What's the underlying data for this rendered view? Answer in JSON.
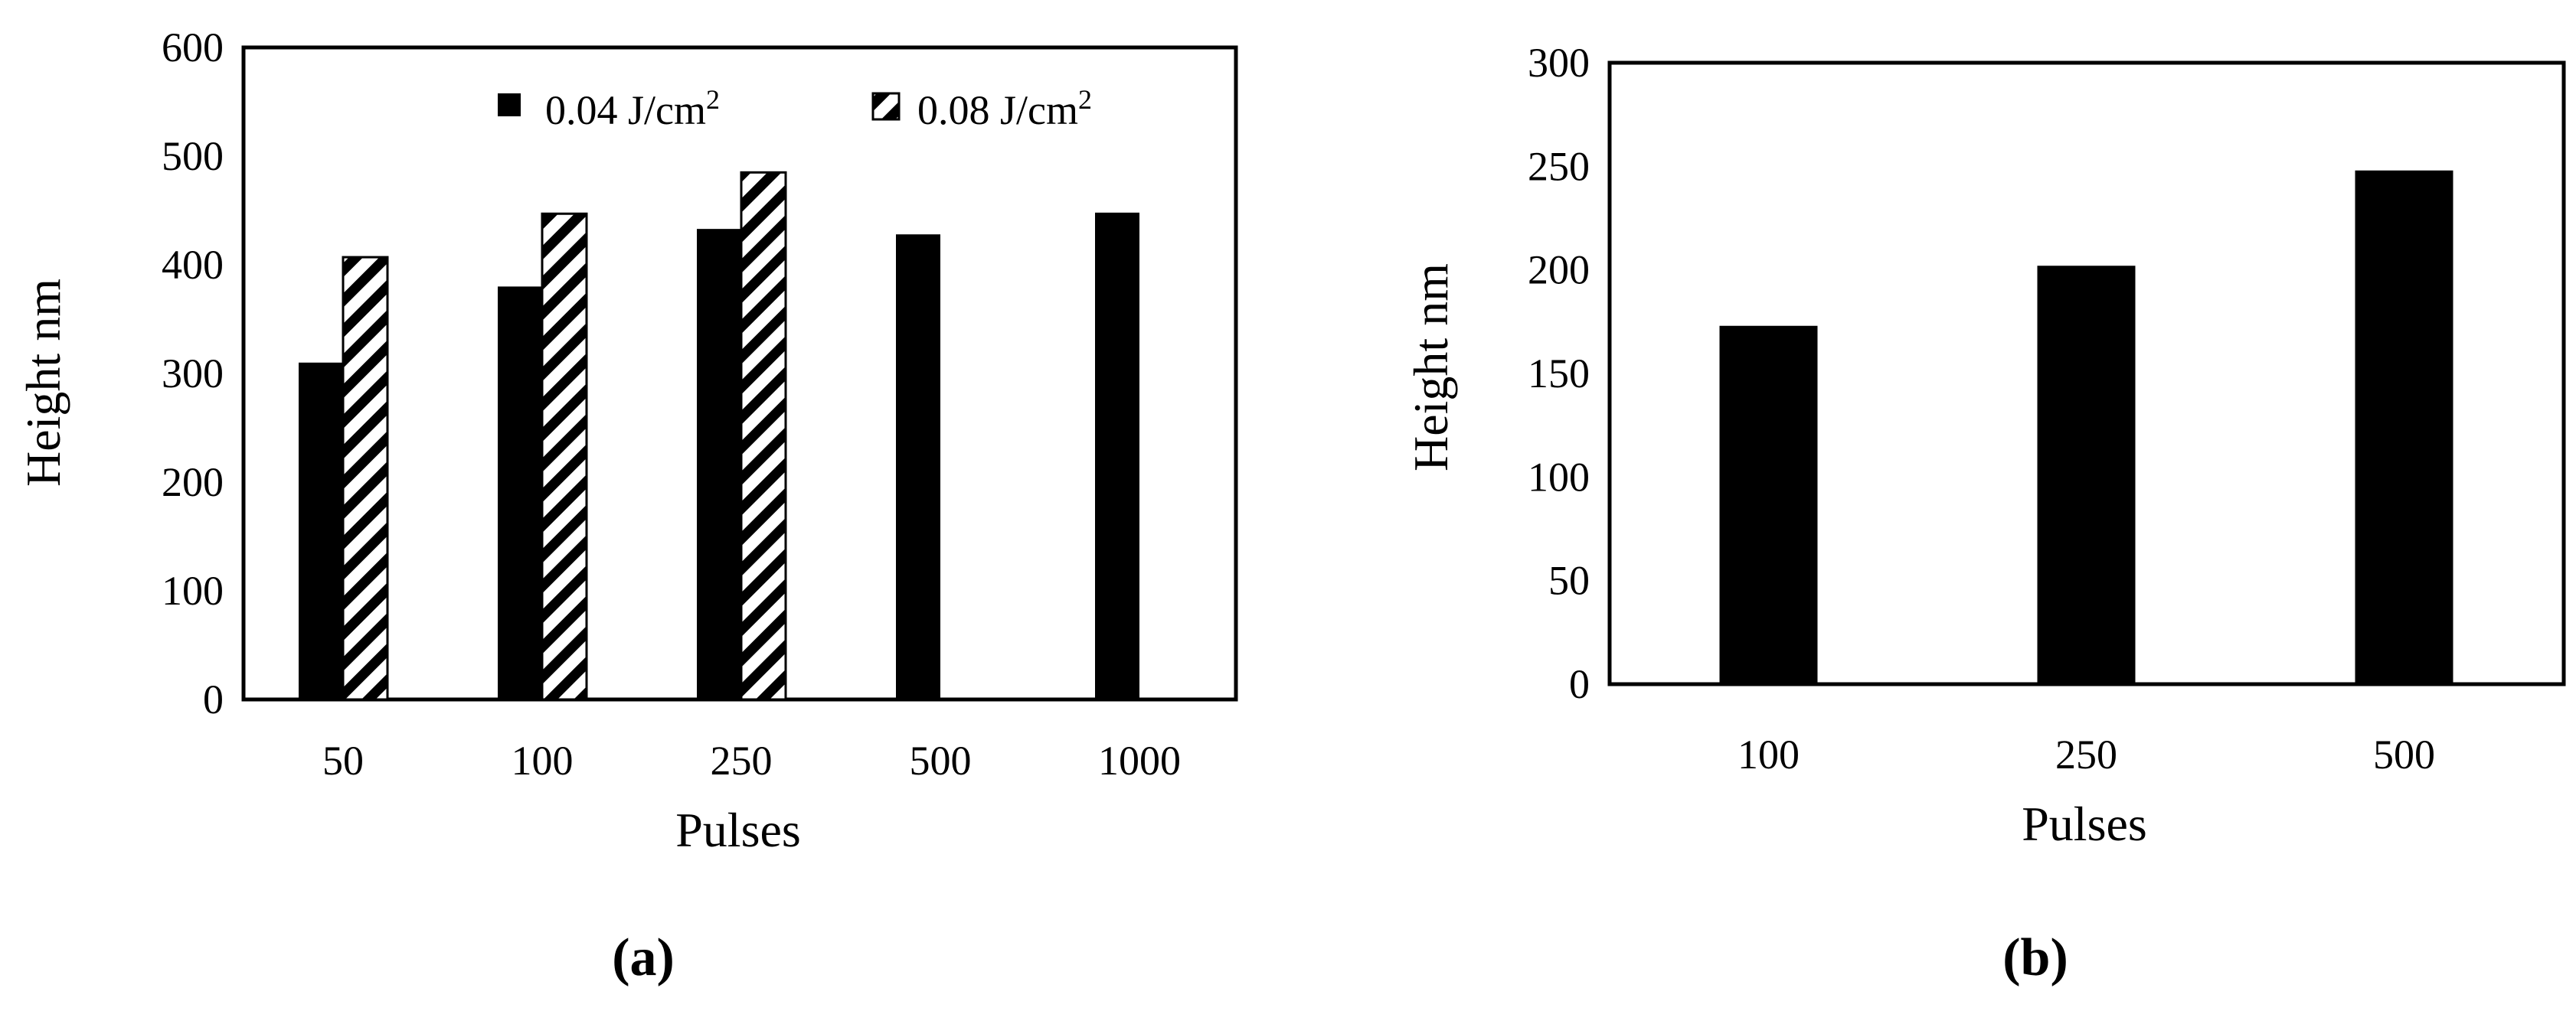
{
  "chart_data": [
    {
      "type": "bar",
      "title": "",
      "xlabel": "Pulses",
      "ylabel": "Height nm",
      "ylim": [
        0,
        600
      ],
      "yticks": [
        0,
        100,
        200,
        300,
        400,
        500,
        600
      ],
      "categories": [
        "50",
        "100",
        "250",
        "500",
        "1000"
      ],
      "series": [
        {
          "name": "0.04 J/cm2",
          "name_base": "0.04 J/cm",
          "name_sup": "2",
          "fill": "solid",
          "color": "#000000",
          "values": [
            310,
            380,
            433,
            428,
            448
          ]
        },
        {
          "name": "0.08 J/cm2",
          "name_base": "0.08 J/cm",
          "name_sup": "2",
          "fill": "diagonal-hatch",
          "color": "#000000",
          "values": [
            407,
            447,
            485,
            null,
            null
          ]
        }
      ],
      "legend": "top-right",
      "grid": false,
      "caption": "(a)"
    },
    {
      "type": "bar",
      "title": "",
      "xlabel": "Pulses",
      "ylabel": "Height nm",
      "ylim": [
        0,
        300
      ],
      "yticks": [
        0,
        50,
        100,
        150,
        200,
        250,
        300
      ],
      "categories": [
        "100",
        "250",
        "500"
      ],
      "series": [
        {
          "fill": "solid",
          "color": "#000000",
          "values": [
            173,
            202,
            248
          ]
        }
      ],
      "legend": "none",
      "grid": false,
      "caption": "(b)"
    }
  ]
}
